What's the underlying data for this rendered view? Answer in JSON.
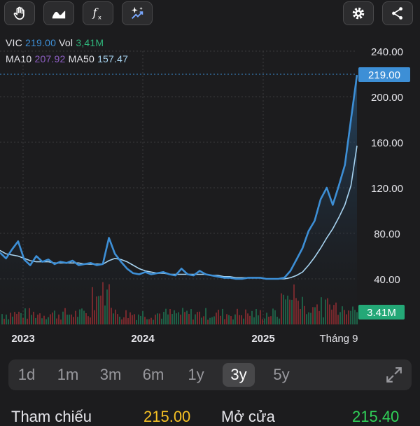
{
  "toolbar": {
    "left_buttons": [
      "hand-icon",
      "area-chart-icon",
      "function-icon",
      "sparkle-chart-icon"
    ],
    "right_buttons": [
      "gear-icon",
      "share-icon"
    ]
  },
  "legend": {
    "symbol": "VIC",
    "price": "219.00",
    "vol_label": "Vol",
    "vol": "3,41M",
    "ma10_label": "MA10",
    "ma10": "207.92",
    "ma50_label": "MA50",
    "ma50": "157.47"
  },
  "colors": {
    "price": "#3d8fd6",
    "ma10": "#8e5fc4",
    "ma50": "#a7d3f0",
    "vol": "#2fb37a",
    "up": "#2fb37a",
    "down": "#e0464a",
    "yellow": "#f5c024",
    "green": "#30d158"
  },
  "chart_data": {
    "type": "line",
    "y_ticks": [
      "240.00",
      "200.00",
      "160.00",
      "120.00",
      "80.00",
      "40.00"
    ],
    "x_ticks": [
      "2023",
      "2024",
      "2025",
      "Tháng 9"
    ],
    "ylim": [
      0,
      240
    ],
    "price_badge": "219.00",
    "volume_badge": "3.41M",
    "series": [
      {
        "name": "VIC",
        "values": [
          63,
          58,
          66,
          73,
          57,
          52,
          60,
          55,
          57,
          53,
          55,
          54,
          56,
          52,
          53,
          54,
          52,
          53,
          76,
          62,
          55,
          49,
          45,
          44,
          46,
          44,
          45,
          46,
          44,
          43,
          49,
          44,
          43,
          47,
          44,
          43,
          42,
          41,
          41,
          40,
          40,
          41,
          41,
          41,
          40,
          40,
          40,
          41,
          47,
          57,
          67,
          82,
          91,
          110,
          120,
          105,
          122,
          140,
          180,
          219
        ]
      },
      {
        "name": "MA50",
        "values": [
          65,
          62,
          61,
          60,
          58,
          56,
          55,
          55,
          55,
          54,
          54,
          54,
          54,
          54,
          53,
          53,
          53,
          53,
          56,
          58,
          57,
          55,
          52,
          49,
          47,
          46,
          45,
          45,
          44,
          44,
          44,
          44,
          44,
          44,
          44,
          43,
          43,
          42,
          42,
          41,
          41,
          41,
          41,
          41,
          40,
          40,
          40,
          40,
          41,
          43,
          46,
          52,
          59,
          67,
          76,
          84,
          94,
          105,
          122,
          157
        ]
      }
    ]
  },
  "ranges": [
    "1d",
    "1m",
    "3m",
    "6m",
    "1y",
    "3y",
    "5y"
  ],
  "active_range": "3y",
  "stats": {
    "ref_label": "Tham chiếu",
    "ref_value": "215.00",
    "open_label": "Mở cửa",
    "open_value": "215.40"
  }
}
